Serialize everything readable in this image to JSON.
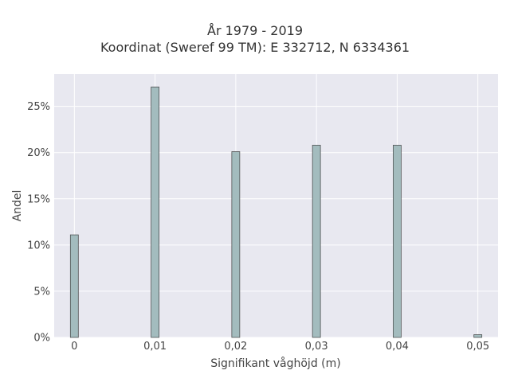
{
  "chart_data": {
    "type": "bar",
    "title": "År 1979 - 2019",
    "subtitle": "Koordinat (Sweref 99 TM): E 332712, N 6334361",
    "xlabel": "Signifikant våghöjd (m)",
    "ylabel": "Andel",
    "x": [
      0,
      0.01,
      0.02,
      0.03,
      0.04,
      0.05
    ],
    "values": [
      11.1,
      27.1,
      20.1,
      20.8,
      20.8,
      0.3
    ],
    "x_ticks": [
      0,
      0.01,
      0.02,
      0.03,
      0.04,
      0.05
    ],
    "x_tick_labels": [
      "0",
      "0,01",
      "0,02",
      "0,03",
      "0,04",
      "0,05"
    ],
    "y_ticks": [
      0,
      5,
      10,
      15,
      20,
      25
    ],
    "y_tick_labels": [
      "0%",
      "5%",
      "10%",
      "15%",
      "20%",
      "25%"
    ],
    "xlim": [
      -0.0025,
      0.0525
    ],
    "ylim": [
      0,
      28.5
    ],
    "grid": true,
    "bar_color": "#a3bcbe",
    "bar_edge_color": "#333333",
    "plot_background": "#e8e8f0"
  }
}
